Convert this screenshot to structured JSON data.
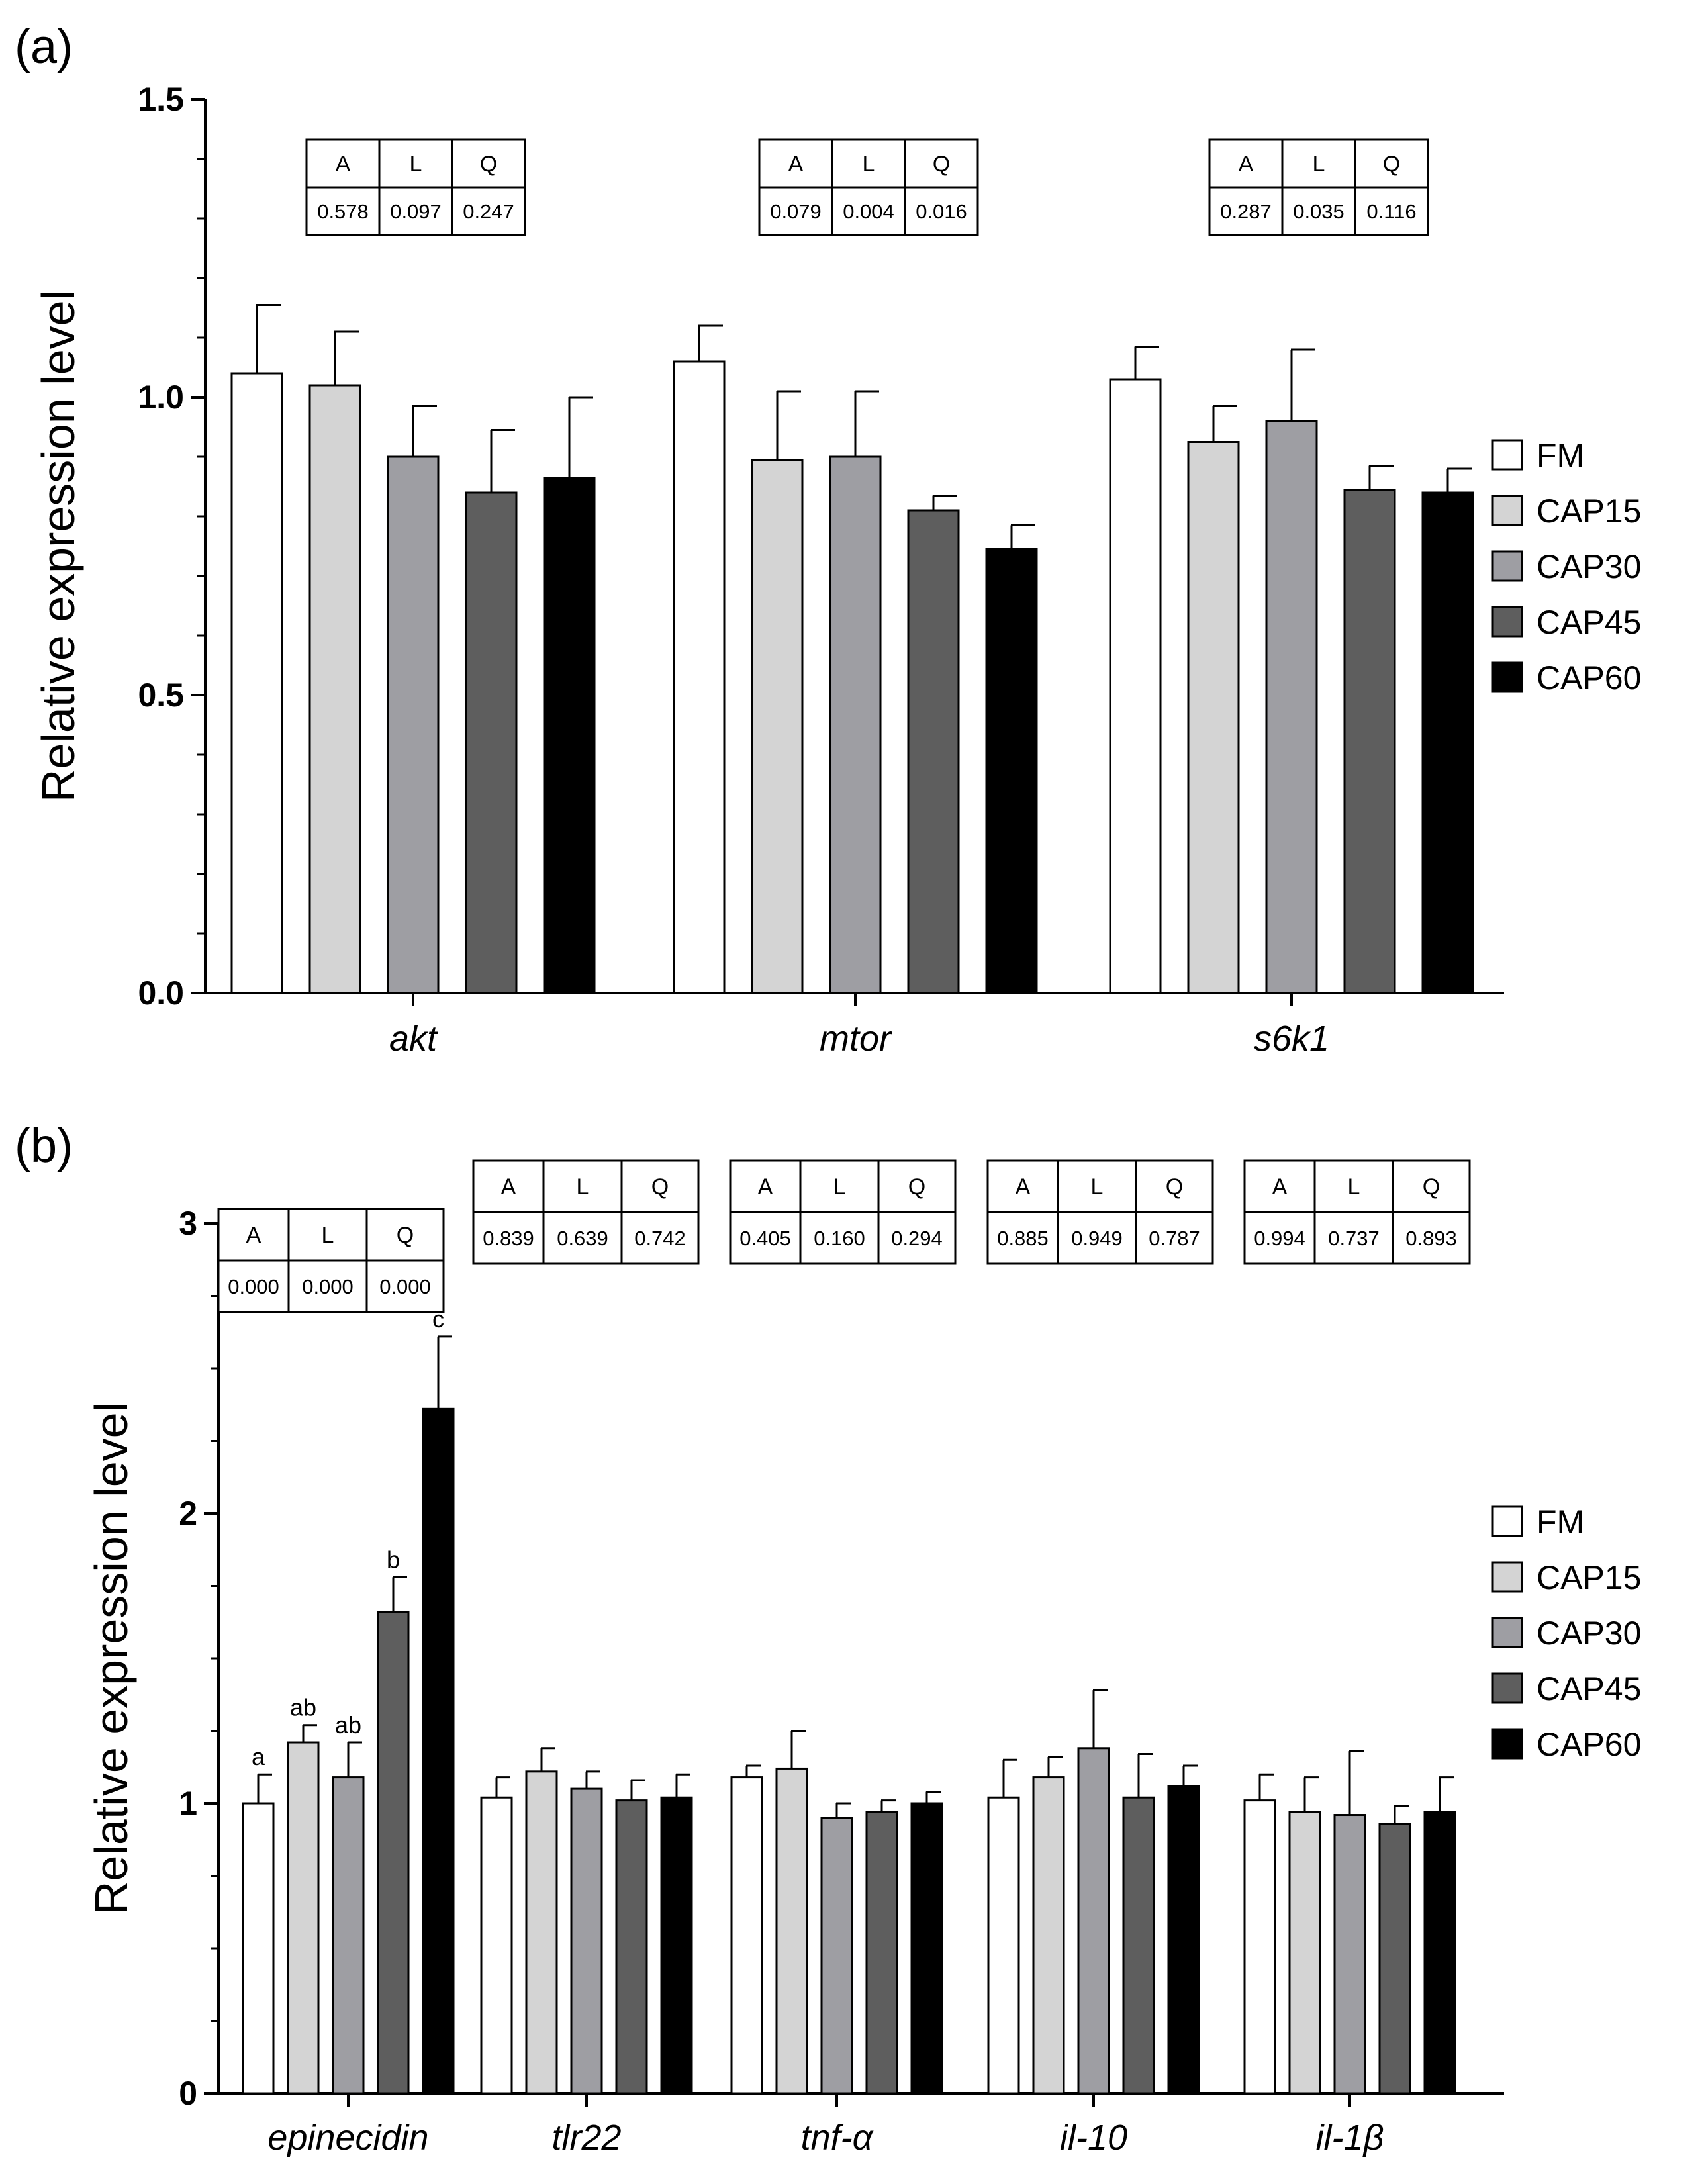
{
  "chart_data": [
    {
      "type": "bar",
      "panel_label": "(a)",
      "ylabel": "Relative expression level",
      "ylim": [
        0,
        1.5
      ],
      "yticks": [
        "0.0",
        "0.5",
        "1.0",
        "1.5"
      ],
      "categories": [
        "akt",
        "mtor",
        "s6k1"
      ],
      "series": [
        {
          "name": "FM",
          "color": "#ffffff",
          "values": [
            1.04,
            1.06,
            1.03
          ],
          "errors": [
            0.115,
            0.06,
            0.055
          ]
        },
        {
          "name": "CAP15",
          "color": "#d4d4d4",
          "values": [
            1.02,
            0.895,
            0.925
          ],
          "errors": [
            0.09,
            0.115,
            0.06
          ]
        },
        {
          "name": "CAP30",
          "color": "#9e9ea3",
          "values": [
            0.9,
            0.9,
            0.96
          ],
          "errors": [
            0.085,
            0.11,
            0.12
          ]
        },
        {
          "name": "CAP45",
          "color": "#5e5e5e",
          "values": [
            0.84,
            0.81,
            0.845
          ],
          "errors": [
            0.105,
            0.025,
            0.04
          ]
        },
        {
          "name": "CAP60",
          "color": "#000000",
          "values": [
            0.865,
            0.745,
            0.84
          ],
          "errors": [
            0.135,
            0.04,
            0.04
          ]
        }
      ],
      "stats_tables": [
        {
          "headers": [
            "A",
            "L",
            "Q"
          ],
          "values": [
            "0.578",
            "0.097",
            "0.247"
          ]
        },
        {
          "headers": [
            "A",
            "L",
            "Q"
          ],
          "values": [
            "0.079",
            "0.004",
            "0.016"
          ]
        },
        {
          "headers": [
            "A",
            "L",
            "Q"
          ],
          "values": [
            "0.287",
            "0.035",
            "0.116"
          ]
        }
      ],
      "legend": [
        "FM",
        "CAP15",
        "CAP30",
        "CAP45",
        "CAP60"
      ]
    },
    {
      "type": "bar",
      "panel_label": "(b)",
      "ylabel": "Relative expression level",
      "ylim": [
        0,
        3
      ],
      "yticks": [
        "0",
        "1",
        "2",
        "3"
      ],
      "categories": [
        "epinecidin",
        "tlr22",
        "tnf-α",
        "il-10",
        "il-1β"
      ],
      "series": [
        {
          "name": "FM",
          "color": "#ffffff",
          "values": [
            1.0,
            1.02,
            1.09,
            1.02,
            1.01
          ],
          "errors": [
            0.1,
            0.07,
            0.04,
            0.13,
            0.09
          ]
        },
        {
          "name": "CAP15",
          "color": "#d4d4d4",
          "values": [
            1.21,
            1.11,
            1.12,
            1.09,
            0.97
          ],
          "errors": [
            0.06,
            0.08,
            0.13,
            0.07,
            0.12
          ]
        },
        {
          "name": "CAP30",
          "color": "#9e9ea3",
          "values": [
            1.09,
            1.05,
            0.95,
            1.19,
            0.96
          ],
          "errors": [
            0.12,
            0.06,
            0.05,
            0.2,
            0.22
          ]
        },
        {
          "name": "CAP45",
          "color": "#5e5e5e",
          "values": [
            1.66,
            1.01,
            0.97,
            1.02,
            0.93
          ],
          "errors": [
            0.12,
            0.07,
            0.04,
            0.15,
            0.06
          ]
        },
        {
          "name": "CAP60",
          "color": "#000000",
          "values": [
            2.36,
            1.02,
            1.0,
            1.06,
            0.97
          ],
          "errors": [
            0.25,
            0.08,
            0.04,
            0.07,
            0.12
          ]
        }
      ],
      "significance_letters": [
        [
          "a",
          "ab",
          "ab",
          "b",
          "c"
        ],
        [
          "",
          "",
          "",
          "",
          ""
        ],
        [
          "",
          "",
          "",
          "",
          ""
        ],
        [
          "",
          "",
          "",
          "",
          ""
        ],
        [
          "",
          "",
          "",
          "",
          ""
        ]
      ],
      "stats_tables": [
        {
          "headers": [
            "A",
            "L",
            "Q"
          ],
          "values": [
            "0.000",
            "0.000",
            "0.000"
          ]
        },
        {
          "headers": [
            "A",
            "L",
            "Q"
          ],
          "values": [
            "0.839",
            "0.639",
            "0.742"
          ]
        },
        {
          "headers": [
            "A",
            "L",
            "Q"
          ],
          "values": [
            "0.405",
            "0.160",
            "0.294"
          ]
        },
        {
          "headers": [
            "A",
            "L",
            "Q"
          ],
          "values": [
            "0.885",
            "0.949",
            "0.787"
          ]
        },
        {
          "headers": [
            "A",
            "L",
            "Q"
          ],
          "values": [
            "0.994",
            "0.737",
            "0.893"
          ]
        }
      ],
      "legend": [
        "FM",
        "CAP15",
        "CAP30",
        "CAP45",
        "CAP60"
      ]
    }
  ]
}
